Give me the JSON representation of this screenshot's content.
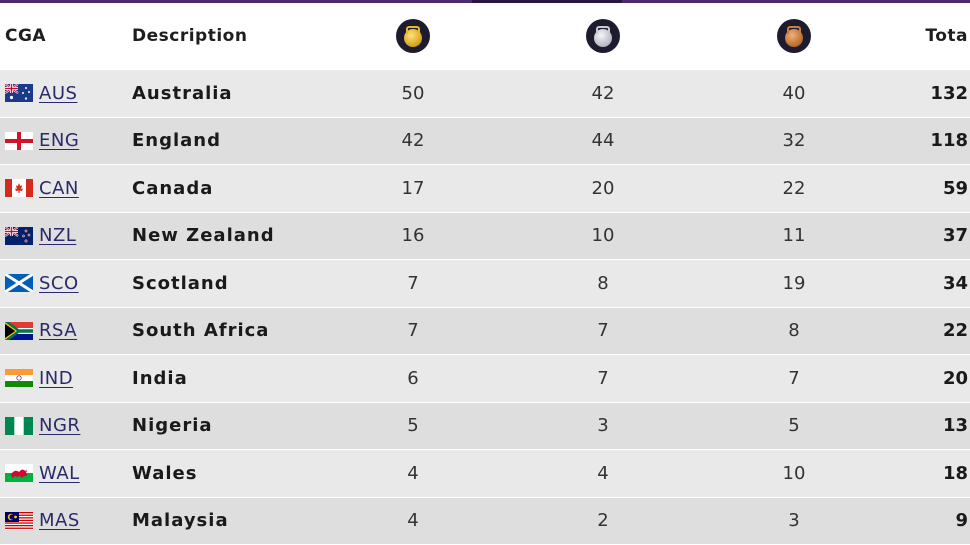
{
  "header": {
    "cga": "CGA",
    "description": "Description",
    "gold_icon": "gold-medal-icon",
    "silver_icon": "silver-medal-icon",
    "bronze_icon": "bronze-medal-icon",
    "total": "Tota"
  },
  "rows": [
    {
      "code": "AUS",
      "country": "Australia",
      "gold": "50",
      "silver": "42",
      "bronze": "40",
      "total": "132",
      "flag_icon": "australia-flag-icon"
    },
    {
      "code": "ENG",
      "country": "England",
      "gold": "42",
      "silver": "44",
      "bronze": "32",
      "total": "118",
      "flag_icon": "england-flag-icon"
    },
    {
      "code": "CAN",
      "country": "Canada",
      "gold": "17",
      "silver": "20",
      "bronze": "22",
      "total": "59",
      "flag_icon": "canada-flag-icon"
    },
    {
      "code": "NZL",
      "country": "New Zealand",
      "gold": "16",
      "silver": "10",
      "bronze": "11",
      "total": "37",
      "flag_icon": "new-zealand-flag-icon"
    },
    {
      "code": "SCO",
      "country": "Scotland",
      "gold": "7",
      "silver": "8",
      "bronze": "19",
      "total": "34",
      "flag_icon": "scotland-flag-icon"
    },
    {
      "code": "RSA",
      "country": "South Africa",
      "gold": "7",
      "silver": "7",
      "bronze": "8",
      "total": "22",
      "flag_icon": "south-africa-flag-icon"
    },
    {
      "code": "IND",
      "country": "India",
      "gold": "6",
      "silver": "7",
      "bronze": "7",
      "total": "20",
      "flag_icon": "india-flag-icon"
    },
    {
      "code": "NGR",
      "country": "Nigeria",
      "gold": "5",
      "silver": "3",
      "bronze": "5",
      "total": "13",
      "flag_icon": "nigeria-flag-icon"
    },
    {
      "code": "WAL",
      "country": "Wales",
      "gold": "4",
      "silver": "4",
      "bronze": "10",
      "total": "18",
      "flag_icon": "wales-flag-icon"
    },
    {
      "code": "MAS",
      "country": "Malaysia",
      "gold": "4",
      "silver": "2",
      "bronze": "3",
      "total": "9",
      "flag_icon": "malaysia-flag-icon"
    }
  ],
  "colors": {
    "top_bar": "#4b2a6e",
    "row_even": "#e9e9e9",
    "row_odd": "#dedede",
    "link": "#2a2a6a"
  }
}
